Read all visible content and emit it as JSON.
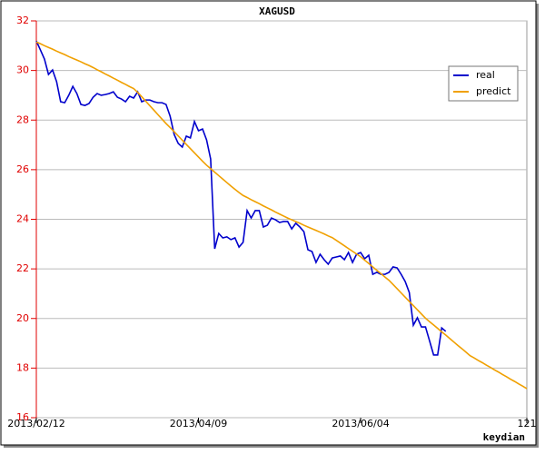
{
  "chart_data": {
    "type": "line",
    "title": "XAGUSD",
    "x_label": "keydian",
    "x": [
      0,
      1,
      2,
      3,
      4,
      5,
      6,
      7,
      8,
      9,
      10,
      11,
      12,
      13,
      14,
      15,
      16,
      17,
      18,
      19,
      20,
      21,
      22,
      23,
      24,
      25,
      26,
      27,
      28,
      29,
      30,
      31,
      32,
      33,
      34,
      35,
      36,
      37,
      38,
      39,
      40,
      41,
      42,
      43,
      44,
      45,
      46,
      47,
      48,
      49,
      50,
      51,
      52,
      53,
      54,
      55,
      56,
      57,
      58,
      59,
      60,
      61,
      62,
      63,
      64,
      65,
      66,
      67,
      68,
      69,
      70,
      71,
      72,
      73,
      74,
      75,
      76,
      77,
      78,
      79,
      80,
      81,
      82,
      83,
      84,
      85,
      86,
      87,
      88,
      89,
      90,
      91,
      92,
      93,
      94,
      95,
      96,
      97,
      98,
      99,
      100,
      101,
      102,
      103,
      104,
      105,
      106,
      107,
      108,
      109,
      110,
      111,
      112,
      113,
      114,
      115,
      116,
      117,
      118,
      119,
      120,
      121
    ],
    "series": [
      {
        "name": "real",
        "color": "#0000cc",
        "values": [
          31.19,
          30.83,
          30.46,
          29.84,
          30.02,
          29.55,
          28.74,
          28.7,
          29.0,
          29.36,
          29.07,
          28.63,
          28.59,
          28.67,
          28.92,
          29.07,
          29.0,
          29.03,
          29.07,
          29.14,
          28.92,
          28.85,
          28.74,
          28.96,
          28.89,
          29.14,
          28.74,
          28.81,
          28.81,
          28.74,
          28.7,
          28.7,
          28.63,
          28.16,
          27.42,
          27.06,
          26.91,
          27.35,
          27.28,
          27.94,
          27.57,
          27.64,
          27.2,
          26.43,
          22.81,
          23.43,
          23.25,
          23.29,
          23.18,
          23.25,
          22.88,
          23.07,
          24.35,
          24.05,
          24.35,
          24.35,
          23.69,
          23.76,
          24.05,
          23.98,
          23.87,
          23.91,
          23.91,
          23.61,
          23.84,
          23.69,
          23.5,
          22.77,
          22.7,
          22.26,
          22.59,
          22.37,
          22.19,
          22.44,
          22.48,
          22.52,
          22.37,
          22.66,
          22.26,
          22.59,
          22.66,
          22.41,
          22.55,
          21.78,
          21.86,
          21.78,
          21.78,
          21.86,
          22.08,
          22.04,
          21.78,
          21.49,
          21.05,
          19.73,
          20.03,
          19.66,
          19.66,
          19.1,
          18.53,
          18.53,
          19.62,
          19.48,
          null,
          null,
          null,
          null,
          null,
          null,
          null,
          null,
          null,
          null,
          null,
          null,
          null,
          null,
          null,
          null,
          null,
          null,
          null,
          null
        ]
      },
      {
        "name": "predict",
        "color": "#f0a000",
        "values": [
          31.15,
          31.08,
          31.0,
          30.93,
          30.86,
          30.78,
          30.71,
          30.64,
          30.56,
          30.49,
          30.42,
          30.35,
          30.27,
          30.2,
          30.12,
          30.03,
          29.95,
          29.86,
          29.78,
          29.69,
          29.61,
          29.52,
          29.44,
          29.35,
          29.27,
          29.12,
          28.94,
          28.76,
          28.58,
          28.4,
          28.22,
          28.04,
          27.86,
          27.7,
          27.53,
          27.36,
          27.19,
          27.02,
          26.85,
          26.68,
          26.51,
          26.34,
          26.18,
          26.04,
          25.9,
          25.76,
          25.62,
          25.48,
          25.34,
          25.21,
          25.08,
          24.96,
          24.88,
          24.79,
          24.71,
          24.63,
          24.54,
          24.46,
          24.38,
          24.29,
          24.21,
          24.13,
          24.05,
          23.98,
          23.91,
          23.84,
          23.76,
          23.69,
          23.62,
          23.55,
          23.48,
          23.41,
          23.33,
          23.26,
          23.15,
          23.04,
          22.93,
          22.82,
          22.71,
          22.6,
          22.49,
          22.35,
          22.22,
          22.08,
          21.94,
          21.81,
          21.67,
          21.54,
          21.37,
          21.2,
          21.03,
          20.86,
          20.69,
          20.52,
          20.35,
          20.18,
          20.01,
          19.87,
          19.74,
          19.6,
          19.46,
          19.33,
          19.19,
          19.05,
          18.91,
          18.78,
          18.64,
          18.5,
          18.41,
          18.31,
          18.22,
          18.12,
          18.03,
          17.93,
          17.84,
          17.74,
          17.65,
          17.55,
          17.46,
          17.36,
          17.27,
          17.17
        ]
      }
    ],
    "xlim": [
      0,
      121
    ],
    "xticks": [
      {
        "value": 0,
        "label": "2013/02/12"
      },
      {
        "value": 40,
        "label": "2013/04/09"
      },
      {
        "value": 80,
        "label": "2013/06/04"
      },
      121
    ],
    "ylim": [
      16,
      32
    ],
    "yticks": [
      16,
      18,
      20,
      22,
      24,
      26,
      28,
      30,
      32
    ],
    "grid": true,
    "legend": "upper right"
  }
}
